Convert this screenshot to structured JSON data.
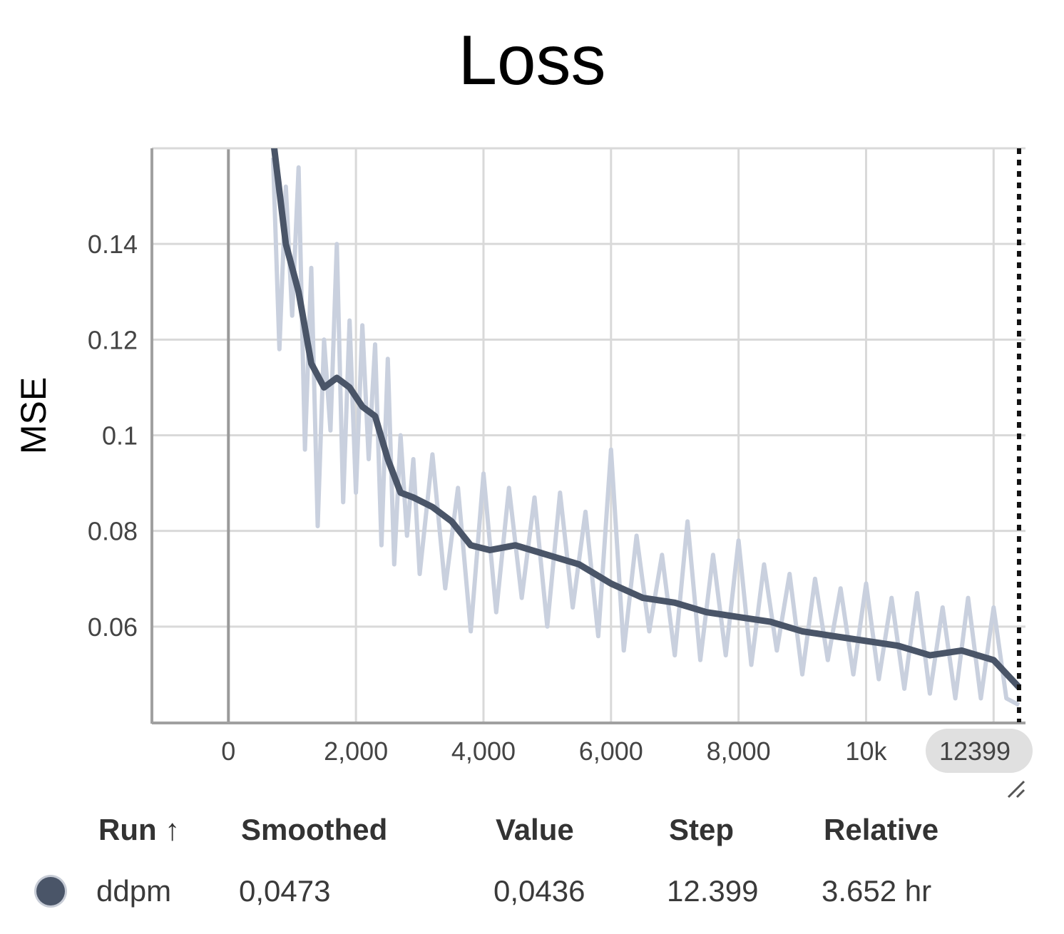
{
  "chart_data": {
    "type": "line",
    "title": "Loss",
    "xlabel": "",
    "ylabel": "MSE",
    "xlim": [
      -1200,
      12500
    ],
    "ylim": [
      0.04,
      0.16
    ],
    "x_ticks": [
      {
        "value": 0,
        "label": "0"
      },
      {
        "value": 2000,
        "label": "2,000"
      },
      {
        "value": 4000,
        "label": "4,000"
      },
      {
        "value": 6000,
        "label": "6,000"
      },
      {
        "value": 8000,
        "label": "8,000"
      },
      {
        "value": 10000,
        "label": "10k"
      }
    ],
    "y_ticks": [
      {
        "value": 0.06,
        "label": "0.06"
      },
      {
        "value": 0.08,
        "label": "0.08"
      },
      {
        "value": 0.1,
        "label": "0.1"
      },
      {
        "value": 0.12,
        "label": "0.12"
      },
      {
        "value": 0.14,
        "label": "0.14"
      }
    ],
    "cursor_step": 12399,
    "cursor_label": "12399",
    "grid": true,
    "series": [
      {
        "name": "ddpm (smoothed)",
        "color": "#4a5568",
        "x": [
          700,
          900,
          1100,
          1300,
          1500,
          1700,
          1900,
          2100,
          2300,
          2500,
          2700,
          2900,
          3200,
          3500,
          3800,
          4100,
          4500,
          5000,
          5500,
          6000,
          6500,
          7000,
          7500,
          8000,
          8500,
          9000,
          9500,
          10000,
          10500,
          11000,
          11500,
          12000,
          12399
        ],
        "y": [
          0.162,
          0.14,
          0.13,
          0.115,
          0.11,
          0.112,
          0.11,
          0.106,
          0.104,
          0.095,
          0.088,
          0.087,
          0.085,
          0.082,
          0.077,
          0.076,
          0.077,
          0.075,
          0.073,
          0.069,
          0.066,
          0.065,
          0.063,
          0.062,
          0.061,
          0.059,
          0.058,
          0.057,
          0.056,
          0.054,
          0.055,
          0.053,
          0.0473
        ]
      },
      {
        "name": "ddpm (raw)",
        "color": "#c9d0de",
        "x": [
          700,
          800,
          900,
          1000,
          1100,
          1200,
          1300,
          1400,
          1500,
          1600,
          1700,
          1800,
          1900,
          2000,
          2100,
          2200,
          2300,
          2400,
          2500,
          2600,
          2700,
          2800,
          2900,
          3000,
          3200,
          3400,
          3600,
          3800,
          4000,
          4200,
          4400,
          4600,
          4800,
          5000,
          5200,
          5400,
          5600,
          5800,
          6000,
          6200,
          6400,
          6600,
          6800,
          7000,
          7200,
          7400,
          7600,
          7800,
          8000,
          8200,
          8400,
          8600,
          8800,
          9000,
          9200,
          9400,
          9600,
          9800,
          10000,
          10200,
          10400,
          10600,
          10800,
          11000,
          11200,
          11400,
          11600,
          11800,
          12000,
          12200,
          12399
        ],
        "y": [
          0.158,
          0.118,
          0.152,
          0.125,
          0.156,
          0.097,
          0.135,
          0.081,
          0.12,
          0.101,
          0.14,
          0.086,
          0.124,
          0.088,
          0.123,
          0.095,
          0.119,
          0.077,
          0.116,
          0.073,
          0.1,
          0.079,
          0.095,
          0.071,
          0.096,
          0.068,
          0.089,
          0.059,
          0.092,
          0.063,
          0.089,
          0.066,
          0.087,
          0.06,
          0.088,
          0.064,
          0.084,
          0.058,
          0.097,
          0.055,
          0.079,
          0.059,
          0.075,
          0.054,
          0.082,
          0.053,
          0.075,
          0.054,
          0.078,
          0.052,
          0.073,
          0.055,
          0.071,
          0.05,
          0.07,
          0.053,
          0.068,
          0.05,
          0.069,
          0.049,
          0.066,
          0.047,
          0.067,
          0.046,
          0.064,
          0.045,
          0.066,
          0.045,
          0.064,
          0.045,
          0.0436
        ]
      }
    ]
  },
  "table": {
    "headers": {
      "run": "Run ↑",
      "smoothed": "Smoothed",
      "value": "Value",
      "step": "Step",
      "relative": "Relative"
    },
    "row": {
      "run": "ddpm",
      "run_color": "#4a5568",
      "smoothed": "0,0473",
      "value": "0,0436",
      "step": "12.399",
      "relative": "3.652 hr"
    }
  }
}
